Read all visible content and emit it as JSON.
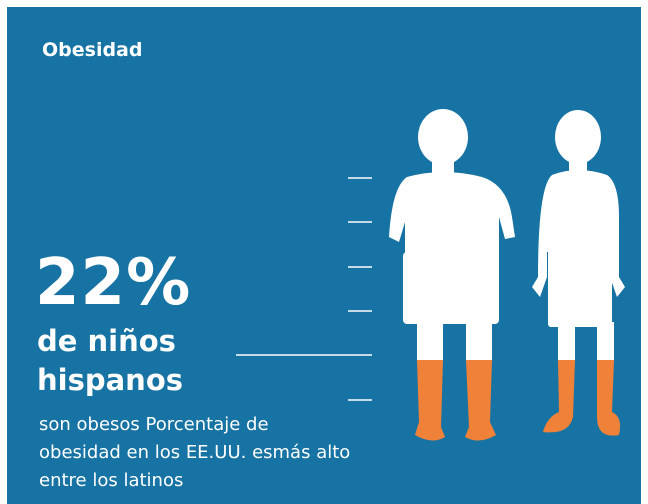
{
  "header": {
    "title": "Obesidad"
  },
  "headline": {
    "figure": "22%",
    "lines": [
      "de niños",
      "hispanos"
    ]
  },
  "body": {
    "lines": [
      "son obesos Porcentaje de",
      "obesidad en los EE.UU. esmás alto",
      "entre los latinos"
    ]
  }
}
